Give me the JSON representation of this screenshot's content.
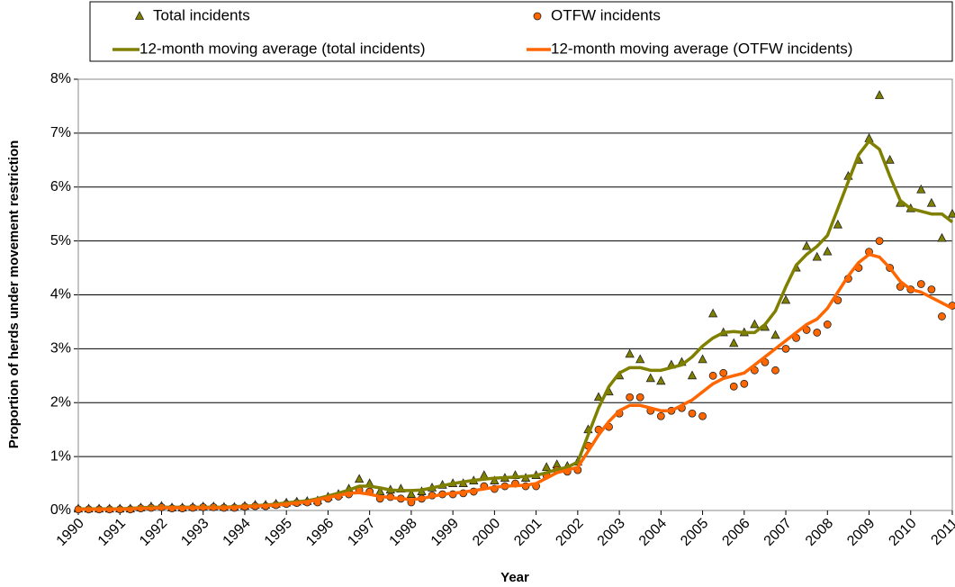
{
  "chart_data": {
    "type": "line",
    "xlabel": "Year",
    "ylabel": "Proportion of herds under movement restriction",
    "xlim": [
      1990,
      2011
    ],
    "ylim": [
      0,
      8
    ],
    "xticks": [
      1990,
      1991,
      1992,
      1993,
      1994,
      1995,
      1996,
      1997,
      1998,
      1999,
      2000,
      2001,
      2002,
      2003,
      2004,
      2005,
      2006,
      2007,
      2008,
      2009,
      2010,
      2011
    ],
    "yticks": [
      {
        "value": 0,
        "label": "0%"
      },
      {
        "value": 1,
        "label": "1%"
      },
      {
        "value": 2,
        "label": "2%"
      },
      {
        "value": 3,
        "label": "3%"
      },
      {
        "value": 4,
        "label": "4%"
      },
      {
        "value": 5,
        "label": "5%"
      },
      {
        "value": 6,
        "label": "6%"
      },
      {
        "value": 7,
        "label": "7%"
      },
      {
        "value": 8,
        "label": "8%"
      }
    ],
    "grid": true,
    "x": [
      1990,
      1990.25,
      1990.5,
      1990.75,
      1991,
      1991.25,
      1991.5,
      1991.75,
      1992,
      1992.25,
      1992.5,
      1992.75,
      1993,
      1993.25,
      1993.5,
      1993.75,
      1994,
      1994.25,
      1994.5,
      1994.75,
      1995,
      1995.25,
      1995.5,
      1995.75,
      1996,
      1996.25,
      1996.5,
      1996.75,
      1997,
      1997.25,
      1997.5,
      1997.75,
      1998,
      1998.25,
      1998.5,
      1998.75,
      1999,
      1999.25,
      1999.5,
      1999.75,
      2000,
      2000.25,
      2000.5,
      2000.75,
      2001,
      2001.25,
      2001.5,
      2001.75,
      2002,
      2002.25,
      2002.5,
      2002.75,
      2003,
      2003.25,
      2003.5,
      2003.75,
      2004,
      2004.25,
      2004.5,
      2004.75,
      2005,
      2005.25,
      2005.5,
      2005.75,
      2006,
      2006.25,
      2006.5,
      2006.75,
      2007,
      2007.25,
      2007.5,
      2007.75,
      2008,
      2008.25,
      2008.5,
      2008.75,
      2009,
      2009.25,
      2009.5,
      2009.75,
      2010,
      2010.25,
      2010.5,
      2010.75,
      2011
    ],
    "series": [
      {
        "name": "Total incidents",
        "color": "#808000",
        "style": "markers",
        "marker": "triangle",
        "values": [
          0.03,
          0.03,
          0.03,
          0.03,
          0.03,
          0.03,
          0.05,
          0.07,
          0.08,
          0.05,
          0.05,
          0.06,
          0.07,
          0.07,
          0.06,
          0.06,
          0.08,
          0.1,
          0.1,
          0.12,
          0.14,
          0.16,
          0.17,
          0.18,
          0.25,
          0.3,
          0.4,
          0.58,
          0.5,
          0.35,
          0.38,
          0.4,
          0.3,
          0.35,
          0.42,
          0.47,
          0.5,
          0.5,
          0.55,
          0.65,
          0.55,
          0.6,
          0.65,
          0.6,
          0.65,
          0.8,
          0.85,
          0.82,
          0.9,
          1.5,
          2.1,
          2.2,
          2.5,
          2.9,
          2.8,
          2.45,
          2.4,
          2.7,
          2.75,
          2.5,
          2.8,
          3.65,
          3.3,
          3.1,
          3.3,
          3.45,
          3.4,
          3.25,
          3.9,
          4.5,
          4.9,
          4.7,
          4.8,
          5.3,
          6.2,
          6.5,
          6.9,
          7.7,
          6.5,
          5.7,
          5.6,
          5.95,
          5.7,
          5.05,
          5.5
        ]
      },
      {
        "name": "OTFW incidents",
        "color": "#ff6600",
        "style": "markers",
        "marker": "circle",
        "values": [
          0.02,
          0.02,
          0.02,
          0.02,
          0.02,
          0.02,
          0.04,
          0.05,
          0.06,
          0.04,
          0.04,
          0.05,
          0.06,
          0.06,
          0.05,
          0.05,
          0.07,
          0.08,
          0.08,
          0.1,
          0.12,
          0.14,
          0.15,
          0.15,
          0.22,
          0.26,
          0.3,
          0.38,
          0.35,
          0.22,
          0.25,
          0.22,
          0.15,
          0.22,
          0.28,
          0.3,
          0.3,
          0.32,
          0.35,
          0.45,
          0.4,
          0.45,
          0.5,
          0.45,
          0.45,
          0.65,
          0.75,
          0.72,
          0.75,
          1.2,
          1.5,
          1.55,
          1.8,
          2.1,
          2.1,
          1.85,
          1.75,
          1.85,
          1.9,
          1.8,
          1.75,
          2.5,
          2.55,
          2.3,
          2.35,
          2.6,
          2.75,
          2.6,
          3.0,
          3.2,
          3.35,
          3.3,
          3.45,
          3.9,
          4.3,
          4.5,
          4.8,
          5.0,
          4.5,
          4.15,
          4.1,
          4.2,
          4.1,
          3.6,
          3.8
        ]
      },
      {
        "name": "12-month moving average (total incidents)",
        "color": "#808000",
        "style": "line",
        "values": [
          0.03,
          0.03,
          0.03,
          0.03,
          0.03,
          0.04,
          0.05,
          0.06,
          0.06,
          0.06,
          0.06,
          0.06,
          0.06,
          0.06,
          0.06,
          0.07,
          0.08,
          0.09,
          0.1,
          0.12,
          0.14,
          0.16,
          0.18,
          0.22,
          0.27,
          0.32,
          0.38,
          0.45,
          0.45,
          0.42,
          0.38,
          0.37,
          0.37,
          0.38,
          0.42,
          0.46,
          0.5,
          0.53,
          0.56,
          0.58,
          0.6,
          0.61,
          0.62,
          0.63,
          0.65,
          0.7,
          0.76,
          0.8,
          0.9,
          1.4,
          1.9,
          2.3,
          2.55,
          2.65,
          2.65,
          2.6,
          2.6,
          2.65,
          2.7,
          2.85,
          3.05,
          3.2,
          3.3,
          3.32,
          3.3,
          3.3,
          3.45,
          3.7,
          4.15,
          4.55,
          4.75,
          4.9,
          5.1,
          5.6,
          6.1,
          6.6,
          6.85,
          6.7,
          6.2,
          5.75,
          5.6,
          5.55,
          5.5,
          5.5,
          5.35
        ]
      },
      {
        "name": "12-month moving average (OTFW incidents)",
        "color": "#ff6600",
        "style": "line",
        "values": [
          0.02,
          0.02,
          0.02,
          0.02,
          0.02,
          0.03,
          0.04,
          0.04,
          0.05,
          0.05,
          0.05,
          0.05,
          0.05,
          0.05,
          0.05,
          0.06,
          0.07,
          0.08,
          0.09,
          0.1,
          0.12,
          0.14,
          0.16,
          0.2,
          0.24,
          0.28,
          0.32,
          0.33,
          0.3,
          0.26,
          0.24,
          0.22,
          0.2,
          0.22,
          0.26,
          0.3,
          0.32,
          0.34,
          0.37,
          0.4,
          0.43,
          0.45,
          0.46,
          0.47,
          0.5,
          0.6,
          0.7,
          0.75,
          0.8,
          1.1,
          1.4,
          1.65,
          1.85,
          1.95,
          1.95,
          1.9,
          1.85,
          1.85,
          1.95,
          2.05,
          2.2,
          2.35,
          2.45,
          2.5,
          2.55,
          2.7,
          2.85,
          3.0,
          3.15,
          3.3,
          3.45,
          3.55,
          3.75,
          4.05,
          4.35,
          4.6,
          4.75,
          4.7,
          4.5,
          4.25,
          4.1,
          4.05,
          3.95,
          3.85,
          3.75
        ]
      }
    ]
  }
}
